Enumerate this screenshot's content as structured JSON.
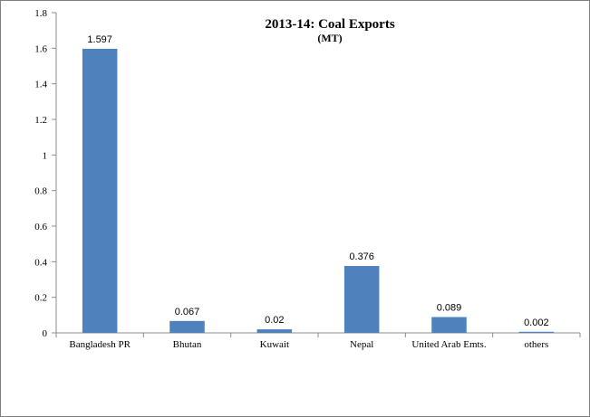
{
  "chart_data": {
    "type": "bar",
    "title": "2013-14: Coal Exports",
    "subtitle": "(MT)",
    "categories": [
      "Bangladesh PR",
      "Bhutan",
      "Kuwait",
      "Nepal",
      "United Arab Emts.",
      "others"
    ],
    "values": [
      1.597,
      0.067,
      0.02,
      0.376,
      0.089,
      0.002
    ],
    "data_labels": [
      "1.597",
      "0.067",
      "0.02",
      "0.376",
      "0.089",
      "0.002"
    ],
    "ylim": [
      0,
      1.8
    ],
    "yticks": [
      "0",
      "0.2",
      "0.4",
      "0.6",
      "0.8",
      "1",
      "1.2",
      "1.4",
      "1.6",
      "1.8"
    ],
    "grid": false,
    "bar_color": "#4f81bd"
  }
}
